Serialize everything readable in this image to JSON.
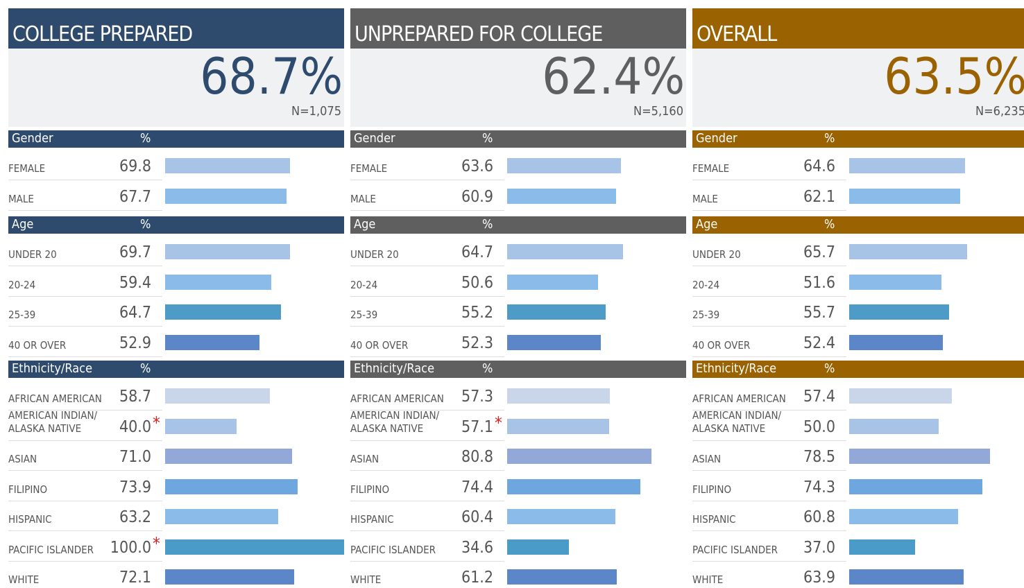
{
  "panels": [
    {
      "title": "COLLEGE PREPARED",
      "overall": "68.7%",
      "n": "N=1,075",
      "color": "#2e4b6e",
      "sections": [
        {
          "name": "Gender",
          "unit": "%",
          "categories": [
            "FEMALE",
            "MALE"
          ],
          "values": [
            69.8,
            67.7
          ],
          "colors": [
            "#a7c4e6",
            "#8bbbe8"
          ]
        },
        {
          "name": "Age",
          "unit": "%",
          "categories": [
            "UNDER 20",
            "20-24",
            "25-39",
            "40 OR OVER"
          ],
          "values": [
            69.7,
            59.4,
            64.7,
            52.9
          ],
          "colors": [
            "#a7c4e6",
            "#8bbbe8",
            "#4f9bc8",
            "#5b86c8"
          ]
        },
        {
          "name": "Ethnicity/Race",
          "unit": "%",
          "categories": [
            "AFRICAN AMERICAN",
            "AMERICAN INDIAN/\nALASKA NATIVE",
            "ASIAN",
            "FILIPINO",
            "HISPANIC",
            "PACIFIC ISLANDER",
            "WHITE"
          ],
          "values": [
            58.7,
            40,
            71,
            73.9,
            63.2,
            100,
            72.1
          ],
          "value_labels": [
            "58.7",
            "40.0",
            "71.0",
            "73.9",
            "63.2",
            "100.0",
            "72.1"
          ],
          "starred": {
            "1": "*",
            "5": "*"
          },
          "colors": [
            "#c9d6ea",
            "#a7c4e6",
            "#92a8d8",
            "#6ea6e0",
            "#8bbbe8",
            "#4a9bc7",
            "#5b86c8"
          ]
        }
      ]
    },
    {
      "title": "UNPREPARED FOR COLLEGE",
      "overall": "62.4%",
      "n": "N=5,160",
      "color": "#5f5f5f",
      "sections": [
        {
          "name": "Gender",
          "unit": "%",
          "categories": [
            "FEMALE",
            "MALE"
          ],
          "values": [
            63.6,
            60.9
          ],
          "colors": [
            "#a7c4e6",
            "#8bbbe8"
          ]
        },
        {
          "name": "Age",
          "unit": "%",
          "categories": [
            "UNDER 20",
            "20-24",
            "25-39",
            "40 OR OVER"
          ],
          "values": [
            64.7,
            50.6,
            55.2,
            52.3
          ],
          "colors": [
            "#a7c4e6",
            "#8bbbe8",
            "#4f9bc8",
            "#5b86c8"
          ]
        },
        {
          "name": "Ethnicity/Race",
          "unit": "%",
          "categories": [
            "AFRICAN AMERICAN",
            "AMERICAN INDIAN/\nALASKA NATIVE",
            "ASIAN",
            "FILIPINO",
            "HISPANIC",
            "PACIFIC ISLANDER",
            "WHITE"
          ],
          "values": [
            57.3,
            57.1,
            80.8,
            74.4,
            60.4,
            34.6,
            61.2
          ],
          "starred": {
            "1": "*"
          },
          "colors": [
            "#c9d6ea",
            "#a7c4e6",
            "#92a8d8",
            "#6ea6e0",
            "#8bbbe8",
            "#4a9bc7",
            "#5b86c8"
          ]
        }
      ]
    },
    {
      "title": "OVERALL",
      "overall": "63.5%",
      "n": "N=6,235",
      "color": "#9a6200",
      "sections": [
        {
          "name": "Gender",
          "unit": "%",
          "categories": [
            "FEMALE",
            "MALE"
          ],
          "values": [
            64.6,
            62.1
          ],
          "colors": [
            "#a7c4e6",
            "#8bbbe8"
          ]
        },
        {
          "name": "Age",
          "unit": "%",
          "categories": [
            "UNDER 20",
            "20-24",
            "25-39",
            "40 OR OVER"
          ],
          "values": [
            65.7,
            51.6,
            55.7,
            52.4
          ],
          "colors": [
            "#a7c4e6",
            "#8bbbe8",
            "#4f9bc8",
            "#5b86c8"
          ]
        },
        {
          "name": "Ethnicity/Race",
          "unit": "%",
          "categories": [
            "AFRICAN AMERICAN",
            "AMERICAN INDIAN/\nALASKA NATIVE",
            "ASIAN",
            "FILIPINO",
            "HISPANIC",
            "PACIFIC ISLANDER",
            "WHITE"
          ],
          "values": [
            57.4,
            50,
            78.5,
            74.3,
            60.8,
            37,
            63.9
          ],
          "value_labels": [
            "57.4",
            "50.0",
            "78.5",
            "74.3",
            "60.8",
            "37.0",
            "63.9"
          ],
          "colors": [
            "#c9d6ea",
            "#a7c4e6",
            "#92a8d8",
            "#6ea6e0",
            "#8bbbe8",
            "#4a9bc7",
            "#5b86c8"
          ]
        }
      ]
    }
  ]
}
